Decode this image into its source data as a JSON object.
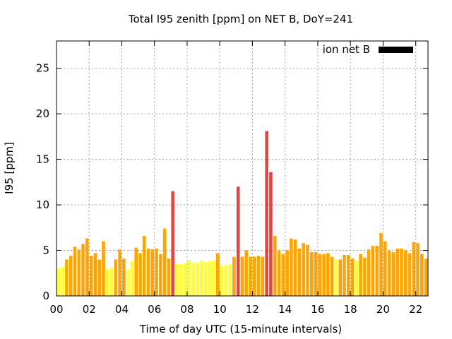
{
  "chart_data": {
    "type": "bar",
    "title": "Total I95 zenith [ppm] on NET B, DoY=241",
    "xlabel": "Time of day UTC (15-minute intervals)",
    "ylabel": "I95 [ppm]",
    "xlim": [
      0,
      22.75
    ],
    "ylim": [
      0,
      28
    ],
    "xticks": [
      "00",
      "02",
      "04",
      "06",
      "08",
      "10",
      "12",
      "14",
      "16",
      "18",
      "20",
      "22"
    ],
    "yticks": [
      "0",
      "5",
      "10",
      "15",
      "20",
      "25"
    ],
    "grid": true,
    "legend": {
      "position": "top-right",
      "label": "ion net B",
      "color": "#000000"
    },
    "level_colors": {
      "low": "#ffff33",
      "medium": "#ffa500",
      "high": "#e84343"
    },
    "bar_width_hours": 0.2,
    "series": [
      {
        "x": [
          0.125,
          0.375,
          0.625,
          0.875,
          1.125,
          1.375,
          1.625,
          1.875,
          2.125,
          2.375,
          2.625,
          2.875,
          3.125,
          3.375,
          3.625,
          3.875,
          4.125,
          4.375,
          4.625,
          4.875,
          5.125,
          5.375,
          5.625,
          5.875,
          6.125,
          6.375,
          6.625,
          6.875,
          7.125,
          7.375,
          7.625,
          7.875,
          8.125,
          8.375,
          8.625,
          8.875,
          9.125,
          9.375,
          9.625,
          9.875,
          10.125,
          10.375,
          10.625,
          10.875,
          11.125,
          11.375,
          11.625,
          11.875,
          12.125,
          12.375,
          12.625,
          12.875,
          13.125,
          13.375,
          13.625,
          13.875,
          14.125,
          14.375,
          14.625,
          14.875,
          15.125,
          15.375,
          15.625,
          15.875,
          16.125,
          16.375,
          16.625,
          16.875,
          17.125,
          17.375,
          17.625,
          17.875,
          18.125,
          18.375,
          18.625,
          18.875,
          19.125,
          19.375,
          19.625,
          19.875,
          20.125,
          20.375,
          20.625,
          20.875,
          21.125,
          21.375,
          21.625,
          21.875,
          22.125,
          22.375,
          22.625
        ],
        "values": [
          3.0,
          3.2,
          4.0,
          4.4,
          5.4,
          5.1,
          5.7,
          6.3,
          4.4,
          4.7,
          4.0,
          6.0,
          2.9,
          3.1,
          4.0,
          5.1,
          4.1,
          2.9,
          3.8,
          5.3,
          4.7,
          6.6,
          5.2,
          5.1,
          5.2,
          4.6,
          7.4,
          4.1,
          11.5,
          3.5,
          3.5,
          3.6,
          3.9,
          3.6,
          3.7,
          3.9,
          3.7,
          3.8,
          3.9,
          4.7,
          3.3,
          3.4,
          3.5,
          4.3,
          12.0,
          4.3,
          5.0,
          4.3,
          4.3,
          4.4,
          4.3,
          18.1,
          13.6,
          6.6,
          5.0,
          4.6,
          5.0,
          6.3,
          6.2,
          5.2,
          5.8,
          5.6,
          4.8,
          4.8,
          4.6,
          4.6,
          4.7,
          4.3,
          4.0,
          4.0,
          4.5,
          4.5,
          4.1,
          3.9,
          4.6,
          4.2,
          5.1,
          5.5,
          5.5,
          6.9,
          6.0,
          5.0,
          4.8,
          5.2,
          5.2,
          5.0,
          4.7,
          5.9,
          5.8,
          4.6,
          4.1
        ],
        "levels": [
          "low",
          "low",
          "medium",
          "medium",
          "medium",
          "medium",
          "medium",
          "medium",
          "medium",
          "medium",
          "medium",
          "medium",
          "low",
          "low",
          "medium",
          "medium",
          "medium",
          "low",
          "low",
          "medium",
          "medium",
          "medium",
          "medium",
          "medium",
          "medium",
          "medium",
          "medium",
          "medium",
          "high",
          "low",
          "low",
          "low",
          "low",
          "low",
          "low",
          "low",
          "low",
          "low",
          "low",
          "medium",
          "low",
          "low",
          "low",
          "medium",
          "high",
          "medium",
          "medium",
          "medium",
          "medium",
          "medium",
          "medium",
          "high",
          "high",
          "medium",
          "medium",
          "medium",
          "medium",
          "medium",
          "medium",
          "medium",
          "medium",
          "medium",
          "medium",
          "medium",
          "medium",
          "medium",
          "medium",
          "medium",
          "low",
          "medium",
          "medium",
          "medium",
          "medium",
          "low",
          "medium",
          "medium",
          "medium",
          "medium",
          "medium",
          "medium",
          "medium",
          "medium",
          "medium",
          "medium",
          "medium",
          "medium",
          "medium",
          "medium",
          "medium",
          "medium",
          "medium"
        ]
      }
    ]
  }
}
